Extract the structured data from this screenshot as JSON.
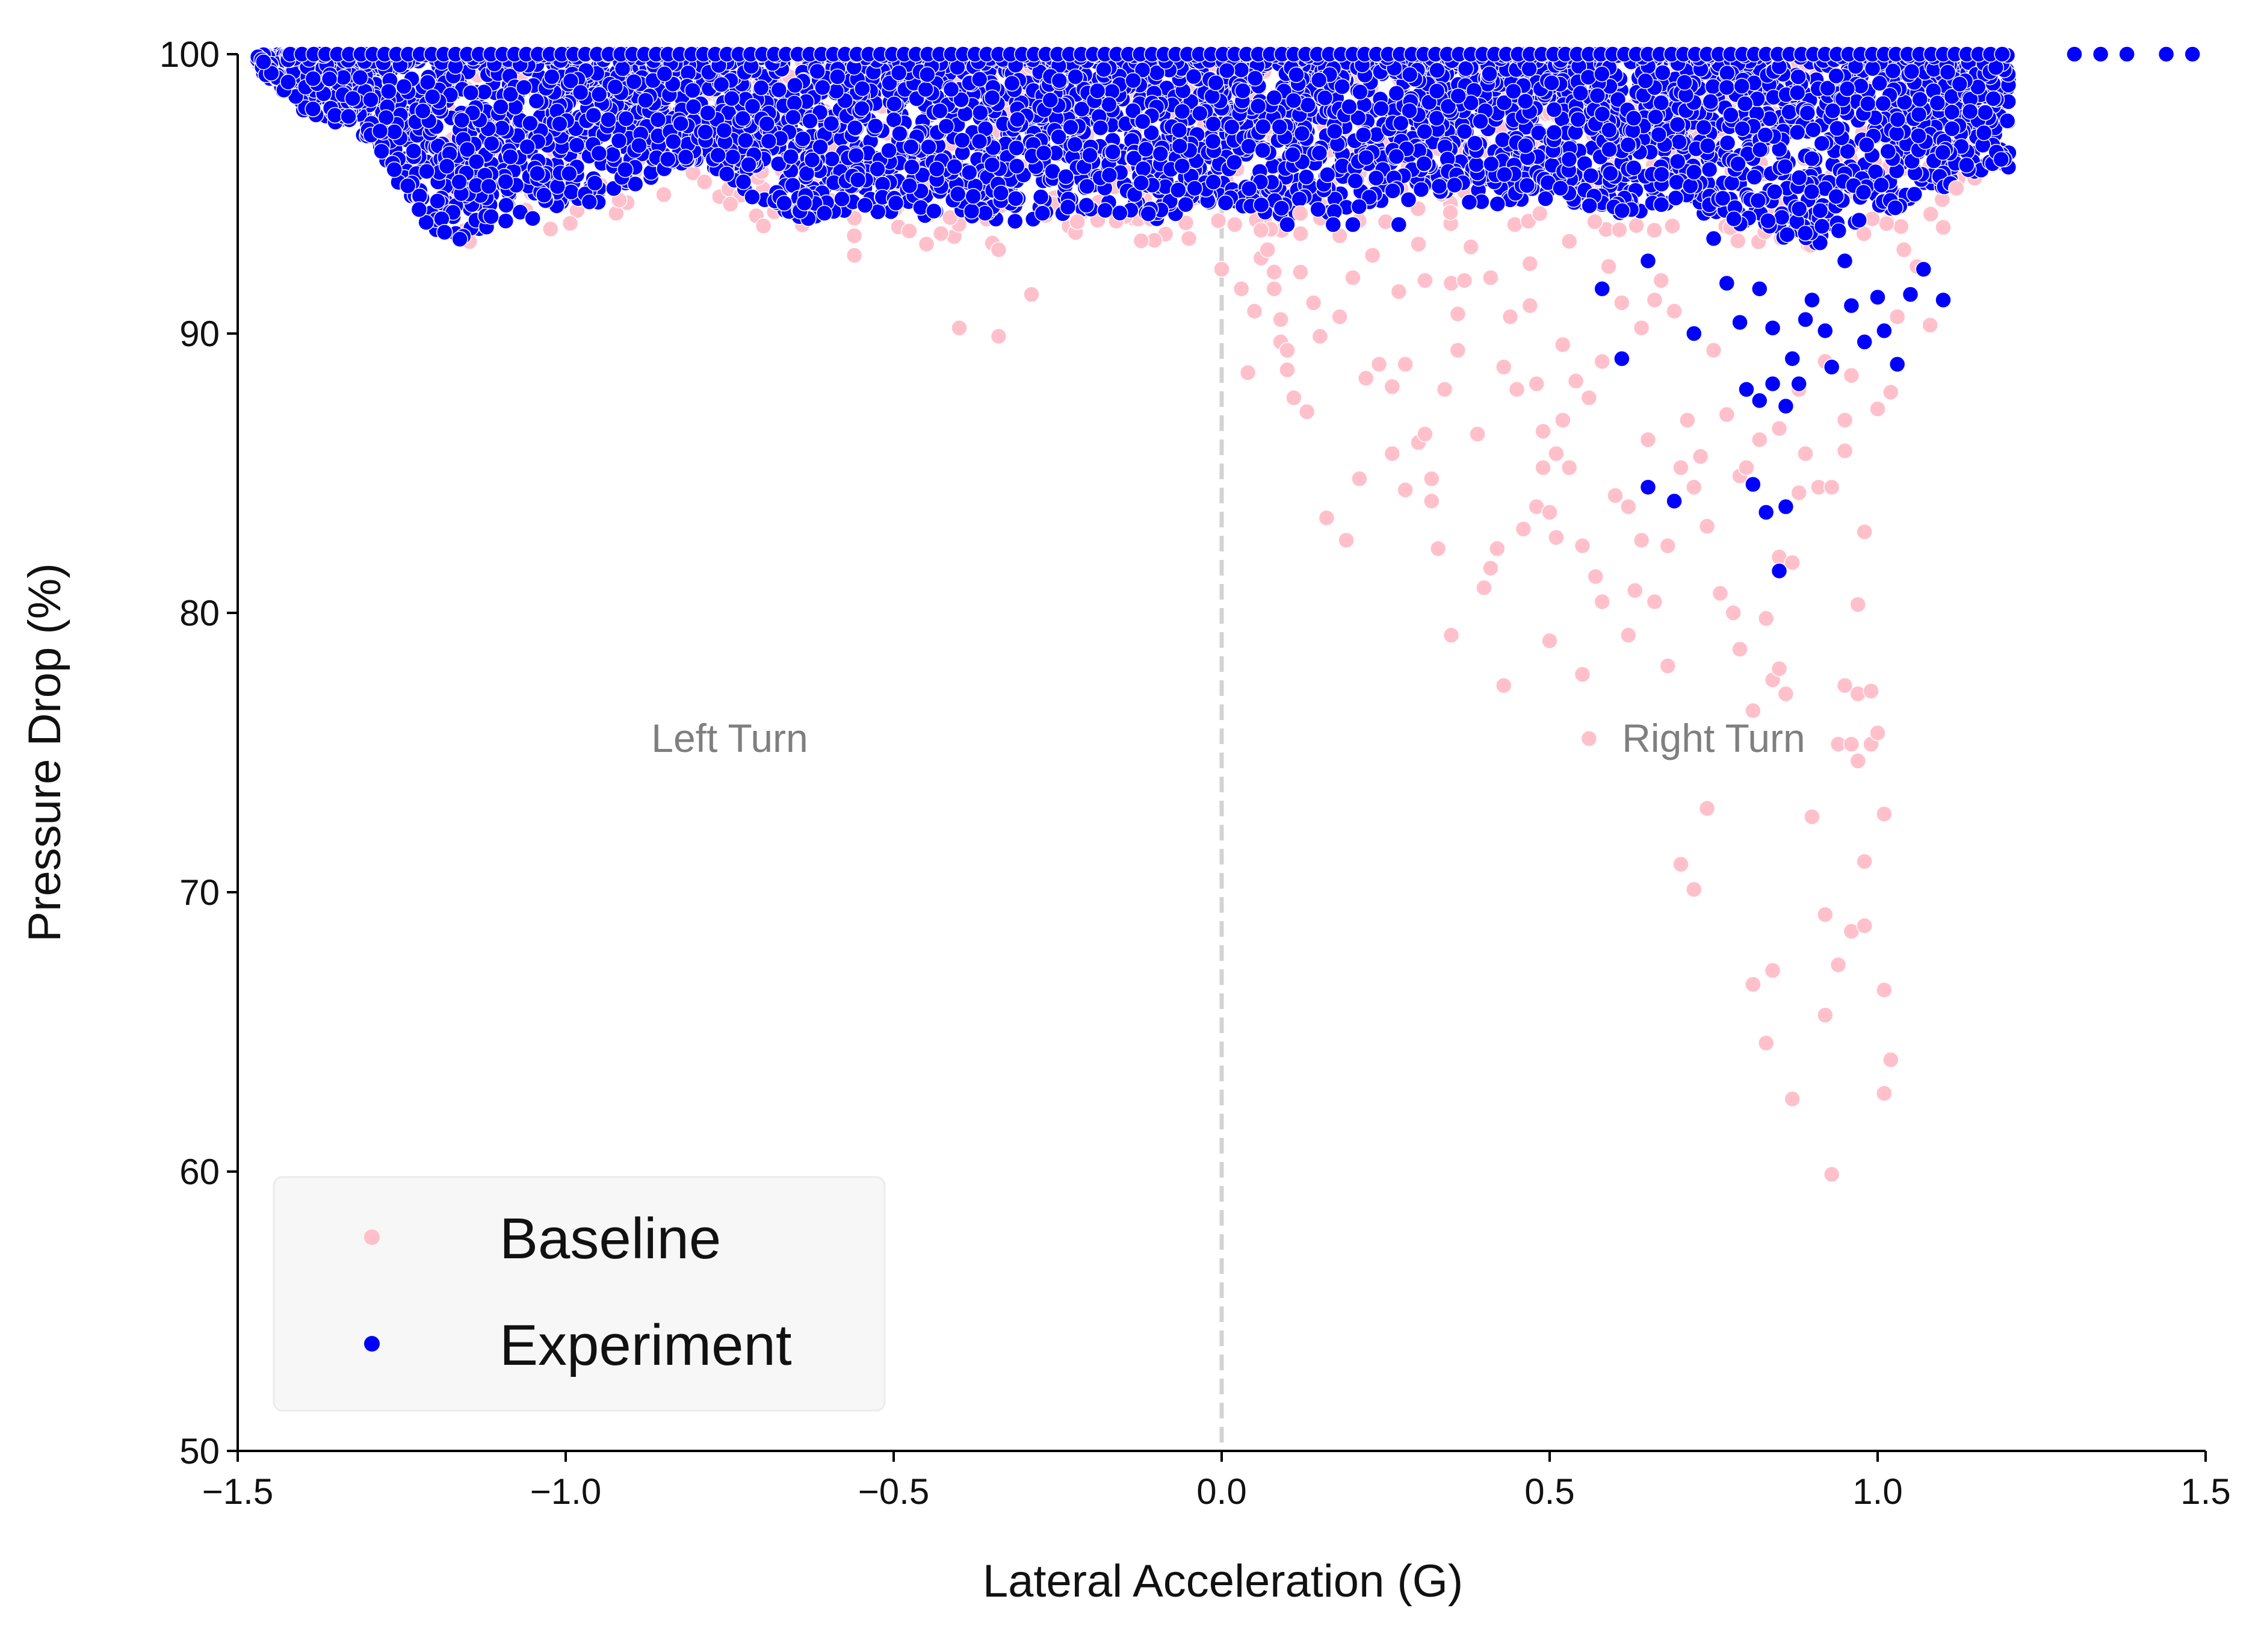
{
  "chart_data": {
    "type": "scatter",
    "xlabel": "Lateral Acceleration (G)",
    "ylabel": "Pressure Drop (%)",
    "xlim": [
      -1.5,
      1.5
    ],
    "ylim": [
      50,
      100
    ],
    "xticks": [
      -1.5,
      -1.0,
      -0.5,
      0.0,
      0.5,
      1.0,
      1.5
    ],
    "xtick_labels": [
      "−1.5",
      "−1.0",
      "−0.5",
      "0.0",
      "0.5",
      "1.0",
      "1.5"
    ],
    "yticks": [
      50,
      60,
      70,
      80,
      90,
      100
    ],
    "ytick_labels": [
      "50",
      "60",
      "70",
      "80",
      "90",
      "100"
    ],
    "grid": false,
    "reference_line": {
      "x": 0.0,
      "style": "dashed",
      "color": "#d3d3d3"
    },
    "annotations": [
      {
        "text": "Left Turn",
        "x": -0.75,
        "y": 75.5
      },
      {
        "text": "Right Turn",
        "x": 0.75,
        "y": 75.5
      }
    ],
    "legend": {
      "location": "lower-left"
    },
    "series": [
      {
        "name": "Baseline",
        "color": "#ffc0cb",
        "points": [
          [
            -0.56,
            92.8
          ],
          [
            -0.56,
            93.5
          ],
          [
            -0.45,
            93.2
          ],
          [
            -0.4,
            90.2
          ],
          [
            -0.34,
            89.9
          ],
          [
            -0.34,
            93.0
          ],
          [
            -0.29,
            91.4
          ],
          [
            -0.22,
            94.0
          ],
          [
            -0.05,
            93.4
          ],
          [
            0.0,
            92.3
          ],
          [
            0.02,
            93.9
          ],
          [
            0.03,
            91.6
          ],
          [
            0.04,
            88.6
          ],
          [
            0.05,
            90.8
          ],
          [
            0.06,
            92.7
          ],
          [
            0.07,
            93.0
          ],
          [
            0.08,
            92.2
          ],
          [
            0.08,
            91.6
          ],
          [
            0.09,
            90.5
          ],
          [
            0.09,
            89.7
          ],
          [
            0.1,
            89.4
          ],
          [
            0.1,
            88.7
          ],
          [
            0.11,
            87.7
          ],
          [
            0.12,
            92.2
          ],
          [
            0.13,
            87.2
          ],
          [
            0.14,
            91.1
          ],
          [
            0.15,
            89.9
          ],
          [
            0.16,
            83.4
          ],
          [
            0.18,
            90.6
          ],
          [
            0.19,
            82.6
          ],
          [
            0.2,
            92.0
          ],
          [
            0.21,
            84.8
          ],
          [
            0.22,
            88.4
          ],
          [
            0.23,
            92.8
          ],
          [
            0.24,
            88.9
          ],
          [
            0.26,
            85.7
          ],
          [
            0.26,
            88.1
          ],
          [
            0.27,
            91.5
          ],
          [
            0.28,
            84.4
          ],
          [
            0.28,
            88.9
          ],
          [
            0.3,
            86.1
          ],
          [
            0.31,
            86.4
          ],
          [
            0.31,
            91.9
          ],
          [
            0.32,
            84.8
          ],
          [
            0.32,
            84.0
          ],
          [
            0.33,
            82.3
          ],
          [
            0.34,
            88.0
          ],
          [
            0.35,
            79.2
          ],
          [
            0.35,
            91.8
          ],
          [
            0.36,
            89.4
          ],
          [
            0.37,
            91.9
          ],
          [
            0.38,
            93.1
          ],
          [
            0.39,
            86.4
          ],
          [
            0.4,
            80.9
          ],
          [
            0.41,
            81.6
          ],
          [
            0.42,
            82.3
          ],
          [
            0.43,
            77.4
          ],
          [
            0.43,
            88.8
          ],
          [
            0.44,
            90.6
          ],
          [
            0.45,
            88.0
          ],
          [
            0.46,
            83.0
          ],
          [
            0.47,
            91.0
          ],
          [
            0.48,
            83.8
          ],
          [
            0.48,
            88.2
          ],
          [
            0.49,
            85.2
          ],
          [
            0.49,
            86.5
          ],
          [
            0.5,
            79.0
          ],
          [
            0.5,
            83.6
          ],
          [
            0.51,
            82.7
          ],
          [
            0.51,
            85.7
          ],
          [
            0.52,
            86.9
          ],
          [
            0.52,
            89.6
          ],
          [
            0.53,
            85.2
          ],
          [
            0.54,
            88.3
          ],
          [
            0.55,
            82.4
          ],
          [
            0.55,
            77.8
          ],
          [
            0.56,
            75.5
          ],
          [
            0.56,
            87.7
          ],
          [
            0.57,
            81.3
          ],
          [
            0.58,
            80.4
          ],
          [
            0.58,
            89.0
          ],
          [
            0.6,
            84.2
          ],
          [
            0.61,
            91.1
          ],
          [
            0.62,
            79.2
          ],
          [
            0.62,
            83.8
          ],
          [
            0.63,
            80.8
          ],
          [
            0.64,
            82.6
          ],
          [
            0.64,
            90.2
          ],
          [
            0.65,
            86.2
          ],
          [
            0.66,
            80.4
          ],
          [
            0.67,
            91.9
          ],
          [
            0.68,
            78.1
          ],
          [
            0.68,
            82.4
          ],
          [
            0.69,
            90.8
          ],
          [
            0.7,
            71.0
          ],
          [
            0.7,
            85.2
          ],
          [
            0.71,
            86.9
          ],
          [
            0.72,
            84.5
          ],
          [
            0.72,
            70.1
          ],
          [
            0.73,
            85.6
          ],
          [
            0.74,
            73.0
          ],
          [
            0.74,
            83.1
          ],
          [
            0.75,
            89.4
          ],
          [
            0.76,
            80.7
          ],
          [
            0.78,
            80.0
          ],
          [
            0.79,
            84.9
          ],
          [
            0.79,
            78.7
          ],
          [
            0.8,
            85.2
          ],
          [
            0.81,
            66.7
          ],
          [
            0.81,
            76.5
          ],
          [
            0.82,
            86.2
          ],
          [
            0.83,
            64.6
          ],
          [
            0.83,
            79.8
          ],
          [
            0.84,
            77.6
          ],
          [
            0.84,
            67.2
          ],
          [
            0.85,
            78.0
          ],
          [
            0.85,
            82.0
          ],
          [
            0.86,
            77.1
          ],
          [
            0.87,
            81.8
          ],
          [
            0.87,
            62.6
          ],
          [
            0.88,
            84.3
          ],
          [
            0.89,
            85.7
          ],
          [
            0.9,
            72.7
          ],
          [
            0.91,
            84.5
          ],
          [
            0.92,
            65.6
          ],
          [
            0.92,
            69.2
          ],
          [
            0.93,
            59.9
          ],
          [
            0.93,
            84.5
          ],
          [
            0.94,
            67.4
          ],
          [
            0.94,
            75.3
          ],
          [
            0.95,
            77.4
          ],
          [
            0.95,
            85.8
          ],
          [
            0.96,
            68.6
          ],
          [
            0.96,
            75.3
          ],
          [
            0.97,
            74.7
          ],
          [
            0.97,
            77.1
          ],
          [
            0.97,
            80.3
          ],
          [
            0.98,
            82.9
          ],
          [
            0.98,
            68.8
          ],
          [
            0.98,
            71.1
          ],
          [
            0.99,
            75.3
          ],
          [
            0.99,
            77.2
          ],
          [
            1.0,
            75.7
          ],
          [
            1.0,
            87.3
          ],
          [
            1.01,
            66.5
          ],
          [
            1.01,
            72.8
          ],
          [
            1.01,
            62.8
          ],
          [
            1.02,
            64.0
          ],
          [
            1.02,
            87.9
          ],
          [
            1.03,
            90.6
          ],
          [
            1.04,
            93.0
          ],
          [
            1.06,
            92.4
          ],
          [
            1.08,
            90.3
          ],
          [
            1.1,
            93.8
          ],
          [
            1.12,
            95.2
          ],
          [
            0.96,
            88.5
          ],
          [
            0.95,
            86.9
          ],
          [
            0.92,
            89.0
          ],
          [
            0.88,
            88.0
          ],
          [
            0.85,
            86.6
          ],
          [
            0.77,
            87.1
          ],
          [
            0.66,
            91.2
          ],
          [
            0.59,
            92.4
          ],
          [
            0.53,
            93.3
          ],
          [
            0.47,
            92.5
          ],
          [
            0.41,
            92.0
          ],
          [
            0.36,
            90.7
          ],
          [
            0.3,
            93.2
          ],
          [
            0.25,
            94.0
          ],
          [
            0.18,
            93.5
          ],
          [
            0.12,
            94.3
          ],
          [
            0.06,
            93.7
          ]
        ]
      },
      {
        "name": "Experiment",
        "color": "#0000ff",
        "cloud": {
          "x_range": [
            -1.47,
            1.2
          ],
          "y_range": [
            93.0,
            100.0
          ],
          "lower_envelope": [
            [
              -1.47,
              99.5
            ],
            [
              -1.4,
              98.0
            ],
            [
              -1.3,
              97.0
            ],
            [
              -1.22,
              94.0
            ],
            [
              -1.18,
              93.0
            ],
            [
              -1.1,
              94.0
            ],
            [
              -1.0,
              94.2
            ],
            [
              -0.9,
              95.2
            ],
            [
              -0.8,
              96.2
            ],
            [
              -0.7,
              94.6
            ],
            [
              -0.62,
              94.0
            ],
            [
              -0.5,
              94.3
            ],
            [
              -0.4,
              94.0
            ],
            [
              -0.3,
              94.0
            ],
            [
              -0.2,
              94.4
            ],
            [
              -0.1,
              94.0
            ],
            [
              0.0,
              94.6
            ],
            [
              0.1,
              94.2
            ],
            [
              0.2,
              94.4
            ],
            [
              0.3,
              94.8
            ],
            [
              0.4,
              94.5
            ],
            [
              0.5,
              94.8
            ],
            [
              0.6,
              94.3
            ],
            [
              0.7,
              94.5
            ],
            [
              0.8,
              93.8
            ],
            [
              0.9,
              93.0
            ],
            [
              1.0,
              94.2
            ],
            [
              1.08,
              95.0
            ],
            [
              1.15,
              95.8
            ],
            [
              1.2,
              95.8
            ]
          ]
        },
        "points": [
          [
            0.1,
            93.9
          ],
          [
            0.17,
            93.9
          ],
          [
            0.2,
            93.9
          ],
          [
            0.27,
            93.9
          ],
          [
            0.58,
            91.6
          ],
          [
            0.61,
            89.1
          ],
          [
            0.65,
            92.6
          ],
          [
            0.65,
            84.5
          ],
          [
            0.69,
            84.0
          ],
          [
            0.72,
            90.0
          ],
          [
            0.75,
            93.4
          ],
          [
            0.77,
            91.8
          ],
          [
            0.79,
            90.4
          ],
          [
            0.8,
            88.0
          ],
          [
            0.81,
            84.6
          ],
          [
            0.82,
            87.6
          ],
          [
            0.82,
            91.6
          ],
          [
            0.83,
            83.6
          ],
          [
            0.84,
            90.2
          ],
          [
            0.84,
            88.2
          ],
          [
            0.85,
            81.5
          ],
          [
            0.86,
            83.8
          ],
          [
            0.86,
            87.4
          ],
          [
            0.87,
            89.1
          ],
          [
            0.88,
            88.2
          ],
          [
            0.89,
            90.5
          ],
          [
            0.9,
            91.2
          ],
          [
            0.92,
            90.1
          ],
          [
            0.93,
            88.8
          ],
          [
            0.95,
            92.6
          ],
          [
            0.96,
            91.0
          ],
          [
            0.98,
            89.7
          ],
          [
            1.0,
            91.3
          ],
          [
            1.01,
            90.1
          ],
          [
            1.03,
            88.9
          ],
          [
            1.05,
            91.4
          ],
          [
            1.07,
            92.3
          ],
          [
            1.1,
            91.2
          ],
          [
            1.3,
            100.0
          ],
          [
            1.34,
            100.0
          ],
          [
            1.38,
            100.0
          ],
          [
            1.44,
            100.0
          ],
          [
            1.48,
            100.0
          ]
        ]
      }
    ]
  }
}
